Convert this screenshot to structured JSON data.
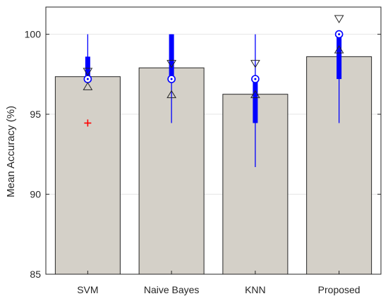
{
  "chart_data": {
    "type": "bar",
    "title": "",
    "xlabel": "",
    "ylabel": "Mean Accuracy (%)",
    "categories": [
      "SVM",
      "Naive Bayes",
      "KNN",
      "Proposed"
    ],
    "values": [
      97.35,
      97.9,
      96.25,
      98.6
    ],
    "ylim": [
      85,
      101.7
    ],
    "yticks": [
      85,
      90,
      95,
      100
    ],
    "grid": "horizontal",
    "bar_color": "#d4d0c8",
    "box_color": "#0000ff",
    "outlier_color": "#ff0000",
    "boxplot": [
      {
        "median": 97.2,
        "q1": 97.2,
        "q3": 98.6,
        "whisker_low": 97.2,
        "whisker_high": 100.0,
        "notch_low": 96.75,
        "notch_high": 97.65,
        "outliers": [
          94.45
        ]
      },
      {
        "median": 97.2,
        "q1": 97.2,
        "q3": 100.0,
        "whisker_low": 94.45,
        "whisker_high": 100.0,
        "notch_low": 96.25,
        "notch_high": 98.15,
        "outliers": []
      },
      {
        "median": 97.2,
        "q1": 94.45,
        "q3": 97.2,
        "whisker_low": 91.7,
        "whisker_high": 100.0,
        "notch_low": 96.25,
        "notch_high": 98.15,
        "outliers": []
      },
      {
        "median": 100.0,
        "q1": 97.2,
        "q3": 100.0,
        "whisker_low": 94.45,
        "whisker_high": 100.0,
        "notch_low": 99.05,
        "notch_high": 100.95,
        "outliers": []
      }
    ]
  }
}
